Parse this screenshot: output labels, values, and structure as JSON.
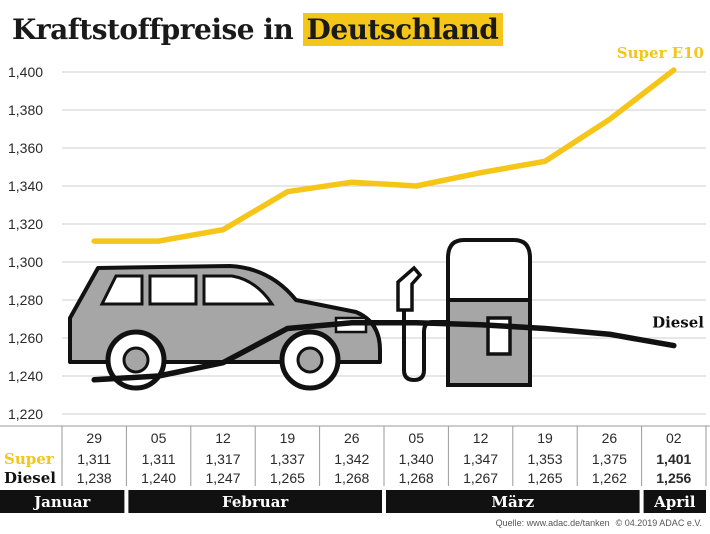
{
  "title_part1": "Kraftstoffpreise in",
  "title_part2": "Deutschland",
  "colors": {
    "super": "#f5c518",
    "diesel": "#111111",
    "car": "#a6a6a6",
    "outline": "#111111"
  },
  "chart_data": {
    "type": "line",
    "title": "Kraftstoffpreise in Deutschland",
    "categories": [
      "29",
      "05",
      "12",
      "19",
      "26",
      "05",
      "12",
      "19",
      "26",
      "02"
    ],
    "series": [
      {
        "name": "Super E10",
        "values": [
          1.311,
          1.311,
          1.317,
          1.337,
          1.342,
          1.34,
          1.347,
          1.353,
          1.375,
          1.401
        ]
      },
      {
        "name": "Diesel",
        "values": [
          1.238,
          1.24,
          1.247,
          1.265,
          1.268,
          1.268,
          1.267,
          1.265,
          1.262,
          1.256
        ]
      }
    ],
    "ylim": [
      1.22,
      1.4
    ],
    "yticks": [
      "1,220",
      "1,240",
      "1,260",
      "1,280",
      "1,300",
      "1,320",
      "1,340",
      "1,360",
      "1,380",
      "1,400"
    ],
    "grid": true,
    "table": {
      "super_label": "Super",
      "diesel_label": "Diesel",
      "super_values": [
        "1,311",
        "1,311",
        "1,317",
        "1,337",
        "1,342",
        "1,340",
        "1,347",
        "1,353",
        "1,375",
        "1,401"
      ],
      "diesel_values": [
        "1,238",
        "1,240",
        "1,247",
        "1,265",
        "1,268",
        "1,268",
        "1,267",
        "1,265",
        "1,262",
        "1,256"
      ]
    },
    "months": [
      {
        "label": "Januar",
        "from": 0,
        "to": 0
      },
      {
        "label": "Februar",
        "from": 1,
        "to": 4
      },
      {
        "label": "März",
        "from": 5,
        "to": 8
      },
      {
        "label": "April",
        "from": 9,
        "to": 9
      }
    ]
  },
  "source": "Quelle: www.adac.de/tanken",
  "copyright": "© 04.2019  ADAC e.V."
}
